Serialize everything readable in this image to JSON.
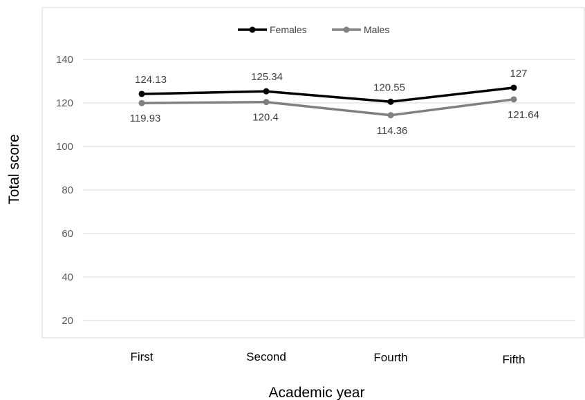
{
  "chart_data": {
    "type": "line",
    "title": "",
    "xlabel": "Academic year",
    "ylabel": "Total score",
    "categories": [
      "First",
      "Second",
      "Fourth",
      "Fifth"
    ],
    "yticks": [
      "20",
      "40",
      "60",
      "80",
      "100",
      "120",
      "140"
    ],
    "ylim": [
      20,
      140
    ],
    "grid": true,
    "legend": "top-center",
    "series": [
      {
        "name": "Females",
        "color": "#000000",
        "values": [
          124.13,
          125.34,
          120.55,
          127
        ],
        "labels": [
          "124.13",
          "125.34",
          "120.55",
          "127"
        ]
      },
      {
        "name": "Males",
        "color": "#808080",
        "values": [
          119.93,
          120.4,
          114.36,
          121.64
        ],
        "labels": [
          "119.93",
          "120.4",
          "114.36",
          "121.64"
        ]
      }
    ]
  }
}
